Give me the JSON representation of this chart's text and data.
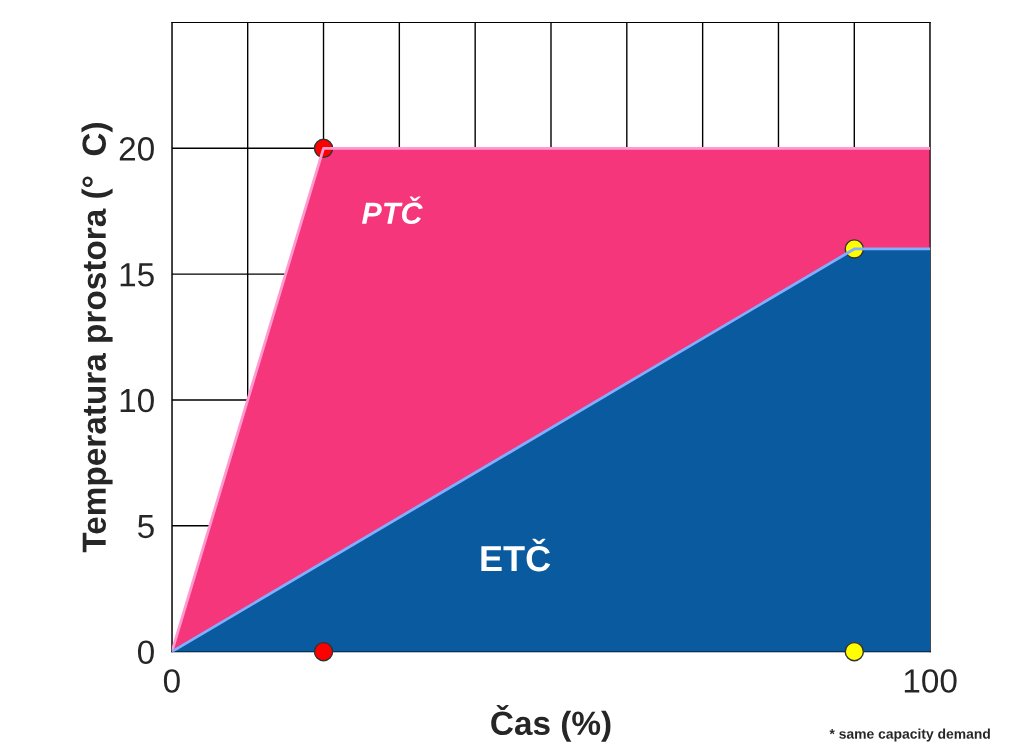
{
  "chart_data": {
    "type": "area",
    "xlabel": "Čas (%)",
    "ylabel": "Temperatura prostora (°  C)",
    "xlim": [
      0,
      100
    ],
    "ylim": [
      0,
      25
    ],
    "xticks": [
      0,
      {
        "value": 10,
        "label": null
      },
      {
        "value": 20,
        "label": null
      },
      {
        "value": 30,
        "label": null
      },
      {
        "value": 40,
        "label": null
      },
      {
        "value": 50,
        "label": null
      },
      {
        "value": 60,
        "label": null
      },
      {
        "value": 70,
        "label": null
      },
      {
        "value": 80,
        "label": null
      },
      {
        "value": 90,
        "label": null
      },
      100
    ],
    "yticks": [
      0,
      5,
      10,
      15,
      20
    ],
    "grid": true,
    "legend": false,
    "series": [
      {
        "name": "PTČ",
        "color": "#f5367a",
        "x": [
          0,
          20,
          100
        ],
        "values": [
          0,
          20,
          20
        ]
      },
      {
        "name": "ETČ",
        "color": "#0a5aa0",
        "x": [
          0,
          90,
          100
        ],
        "values": [
          0,
          16,
          16
        ]
      },
      {
        "type": "scatter",
        "x": [
          20,
          90,
          20,
          90
        ],
        "values": [
          20,
          16,
          0,
          0
        ],
        "colors": [
          "#ff0000",
          "#ffff00",
          "#ff0000",
          "#ffff00"
        ]
      }
    ],
    "annotations": [
      "* same capacity demand"
    ]
  }
}
